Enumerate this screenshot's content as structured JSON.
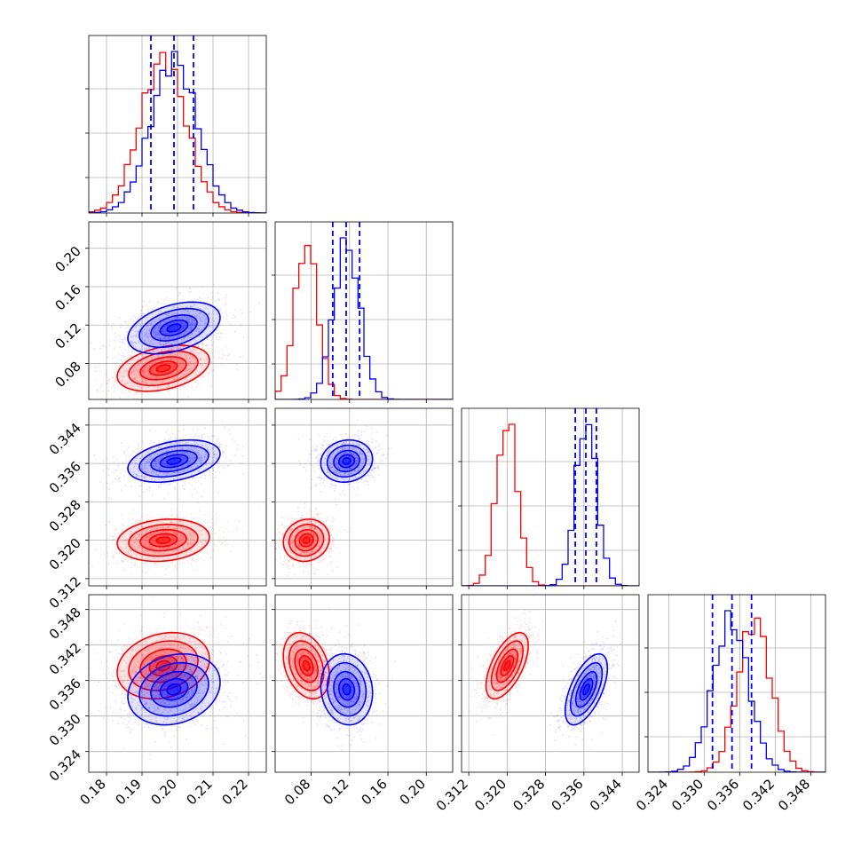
{
  "chart_data": {
    "type": "corner",
    "title": "",
    "series": [
      {
        "name": "",
        "color": "#ff0000",
        "mean": [
          0.196,
          0.075,
          0.32,
          0.3385
        ],
        "sd": [
          0.0065,
          0.012,
          0.0022,
          0.0028
        ],
        "corr": [
          [
            1,
            0.35,
            0.15,
            0.2
          ],
          [
            0.35,
            1,
            0.1,
            -0.3
          ],
          [
            0.15,
            0.1,
            1,
            0.6
          ],
          [
            0.2,
            -0.3,
            0.6,
            1
          ]
        ]
      },
      {
        "name": "",
        "color": "#0000ff",
        "mean": [
          0.199,
          0.117,
          0.3365,
          0.3345
        ],
        "sd": [
          0.0065,
          0.0135,
          0.0022,
          0.003
        ],
        "corr": [
          [
            1,
            0.4,
            0.35,
            0.2
          ],
          [
            0.4,
            1,
            0.1,
            -0.1
          ],
          [
            0.35,
            0.1,
            1,
            0.6
          ],
          [
            0.2,
            -0.1,
            0.6,
            1
          ]
        ]
      }
    ],
    "quantile_lines": [
      [
        0.1925,
        0.199,
        0.2045
      ],
      [
        0.1025,
        0.1165,
        0.1305
      ],
      [
        0.3342,
        0.3364,
        0.3386
      ],
      [
        0.3314,
        0.3347,
        0.338
      ]
    ],
    "quantile_color": "#0000ff",
    "ranges": [
      [
        0.175,
        0.225
      ],
      [
        0.0425,
        0.2275
      ],
      [
        0.3105,
        0.3475
      ],
      [
        0.3205,
        0.3505
      ]
    ],
    "ticks": [
      [
        "0.18",
        "0.19",
        "0.20",
        "0.21",
        "0.22"
      ],
      [
        "0.08",
        "0.12",
        "0.16",
        "0.20"
      ],
      [
        "0.312",
        "0.320",
        "0.328",
        "0.336",
        "0.344"
      ],
      [
        "0.324",
        "0.330",
        "0.336",
        "0.342",
        "0.348"
      ]
    ],
    "xlabel": "",
    "ylabel": "",
    "grid": true,
    "contour_levels": [
      0.3,
      0.6,
      1.0,
      1.5,
      2.0
    ]
  }
}
